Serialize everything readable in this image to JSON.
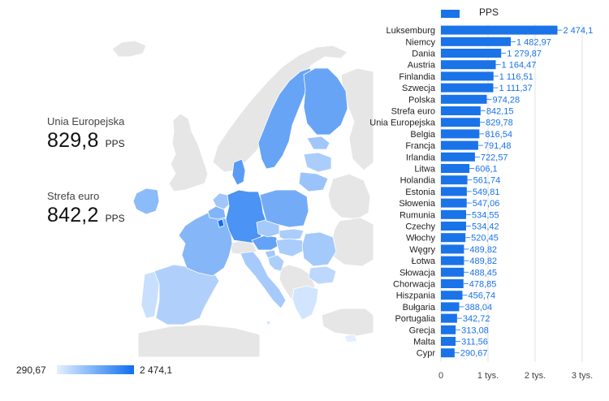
{
  "colors": {
    "bar": "#1a73e8",
    "label": "#1a73e8",
    "axis_text": "#444444",
    "grid": "#e0e0e0",
    "map_sea": "#ffffff",
    "map_land_no_data": "#e6e6e6",
    "map_border": "#ffffff",
    "scale_low": "#e3efff",
    "scale_high": "#0f6ff0"
  },
  "kpis": [
    {
      "label": "Unia Europejska",
      "value": "829,8",
      "unit": "PPS"
    },
    {
      "label": "Strefa euro",
      "value": "842,2",
      "unit": "PPS"
    }
  ],
  "map_legend": {
    "min": "290,67",
    "max": "2 474,1"
  },
  "chart_data": {
    "type": "bar",
    "orientation": "horizontal",
    "legend": {
      "label": "PPS",
      "position": "top"
    },
    "categories": [
      "Luksemburg",
      "Niemcy",
      "Dania",
      "Austria",
      "Finlandia",
      "Szwecja",
      "Polska",
      "Strefa euro",
      "Unia Europejska",
      "Belgia",
      "Francja",
      "Irlandia",
      "Litwa",
      "Holandia",
      "Estonia",
      "Słowenia",
      "Rumunia",
      "Czechy",
      "Włochy",
      "Węgry",
      "Łotwa",
      "Słowacja",
      "Chorwacja",
      "Hiszpania",
      "Bułgaria",
      "Portugalia",
      "Grecja",
      "Malta",
      "Cypr"
    ],
    "values": [
      2474.1,
      1482.97,
      1279.87,
      1164.47,
      1116.51,
      1111.37,
      974.28,
      842.15,
      829.78,
      816.54,
      791.48,
      722.57,
      606.1,
      561.74,
      549.81,
      547.06,
      534.55,
      534.42,
      520.45,
      489.82,
      489.82,
      488.45,
      478.85,
      456.74,
      388.04,
      342.72,
      313.08,
      311.56,
      290.67
    ],
    "value_labels": [
      "2 474,1",
      "1 482,97",
      "1 279,87",
      "1 164,47",
      "1 116,51",
      "1 111,37",
      "974,28",
      "842,15",
      "829,78",
      "816,54",
      "791,48",
      "722,57",
      "606,1",
      "561,74",
      "549,81",
      "547,06",
      "534,55",
      "534,42",
      "520,45",
      "489,82",
      "489,82",
      "488,45",
      "478,85",
      "456,74",
      "388,04",
      "342,72",
      "313,08",
      "311,56",
      "290,67"
    ],
    "x_ticks": [
      0,
      1000,
      2000,
      3000
    ],
    "x_tick_labels": [
      "0",
      "1 tys.",
      "2 tys.",
      "3 tys."
    ],
    "xlim": [
      0,
      3000
    ],
    "grid": true
  },
  "map": {
    "type": "choropleth",
    "value_range": [
      290.67,
      2474.1
    ],
    "regions": [
      {
        "name": "Portugalia",
        "value": 342.72
      },
      {
        "name": "Hiszpania",
        "value": 456.74
      },
      {
        "name": "Francja",
        "value": 791.48
      },
      {
        "name": "Irlandia",
        "value": 722.57
      },
      {
        "name": "Belgia",
        "value": 816.54
      },
      {
        "name": "Holandia",
        "value": 561.74
      },
      {
        "name": "Luksemburg",
        "value": 2474.1
      },
      {
        "name": "Niemcy",
        "value": 1482.97
      },
      {
        "name": "Dania",
        "value": 1279.87
      },
      {
        "name": "Austria",
        "value": 1164.47
      },
      {
        "name": "Włochy",
        "value": 520.45
      },
      {
        "name": "Czechy",
        "value": 534.42
      },
      {
        "name": "Polska",
        "value": 974.28
      },
      {
        "name": "Słowacja",
        "value": 488.45
      },
      {
        "name": "Węgry",
        "value": 489.82
      },
      {
        "name": "Słowenia",
        "value": 547.06
      },
      {
        "name": "Chorwacja",
        "value": 478.85
      },
      {
        "name": "Rumunia",
        "value": 534.55
      },
      {
        "name": "Bułgaria",
        "value": 388.04
      },
      {
        "name": "Grecja",
        "value": 313.08
      },
      {
        "name": "Szwecja",
        "value": 1111.37
      },
      {
        "name": "Finlandia",
        "value": 1116.51
      },
      {
        "name": "Estonia",
        "value": 549.81
      },
      {
        "name": "Łotwa",
        "value": 489.82
      },
      {
        "name": "Litwa",
        "value": 606.1
      },
      {
        "name": "Cypr",
        "value": 290.67
      },
      {
        "name": "Malta",
        "value": 311.56
      }
    ]
  }
}
